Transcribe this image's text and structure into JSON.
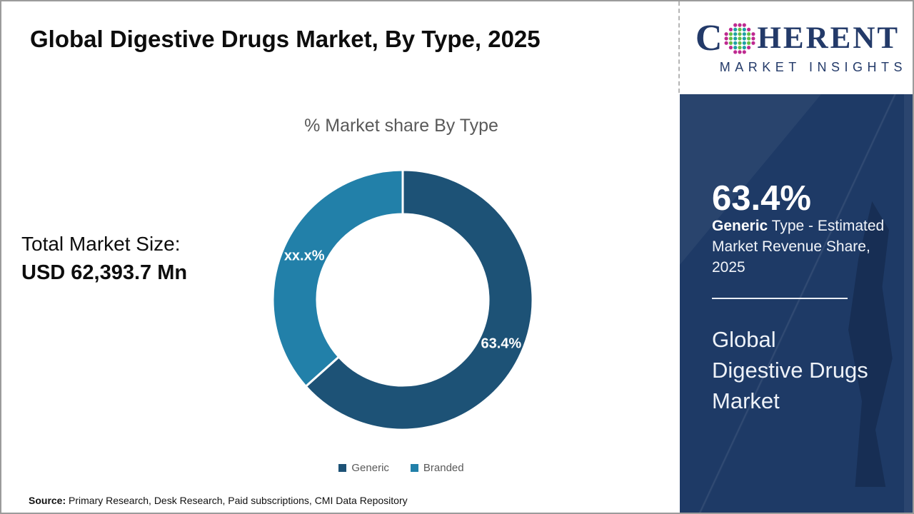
{
  "header": {
    "title": "Global Digestive Drugs Market, By Type, 2025"
  },
  "logo": {
    "letter_c": "C",
    "letters_rest": "HERENT",
    "subtitle": "MARKET INSIGHTS",
    "navy": "#233A69",
    "globe_colors": {
      "outer": "#BE2A90",
      "mid": "#1FA0A5",
      "inner": "#63BE46"
    }
  },
  "left_panel": {
    "total_label": "Total Market Size:",
    "total_value": "USD 62,393.7 Mn"
  },
  "chart_data": {
    "type": "pie",
    "subtype": "donut",
    "title": "% Market share By Type",
    "categories": [
      "Generic",
      "Branded"
    ],
    "values": [
      63.4,
      36.6
    ],
    "display_labels": [
      "63.4%",
      "xx.x%"
    ],
    "colors": [
      "#1D5276",
      "#2280A9"
    ],
    "inner_radius_ratio": 0.66,
    "start_angle_deg": 0,
    "direction": "clockwise",
    "legend_position": "bottom"
  },
  "sidebar": {
    "background": "#1E3A66",
    "stat_value": "63.4%",
    "stat_desc_bold": "Generic",
    "stat_desc_rest": " Type - Estimated Market Revenue Share, 2025",
    "footer_lines": [
      "Global",
      "Digestive Drugs",
      "Market"
    ]
  },
  "footer": {
    "source_label": "Source:",
    "source_text": " Primary Research, Desk Research, Paid subscriptions, CMI Data Repository"
  }
}
